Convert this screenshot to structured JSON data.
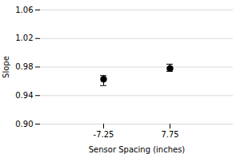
{
  "chart_data": {
    "type": "errorbar",
    "categories": [
      "-7.25",
      "7.75"
    ],
    "values": [
      0.963,
      0.978
    ],
    "lower_errors": [
      0.009,
      0.004
    ],
    "upper_errors": [
      0.005,
      0.006
    ],
    "color": "black",
    "xlabel": "Sensor Spacing (inches)",
    "ylabel": "Slope",
    "ylim": [
      0.9,
      1.06
    ],
    "yticks": [
      {
        "value": 0.9,
        "label": "0.90"
      },
      0.94,
      0.98,
      1.02,
      1.06
    ],
    "grid": true
  }
}
